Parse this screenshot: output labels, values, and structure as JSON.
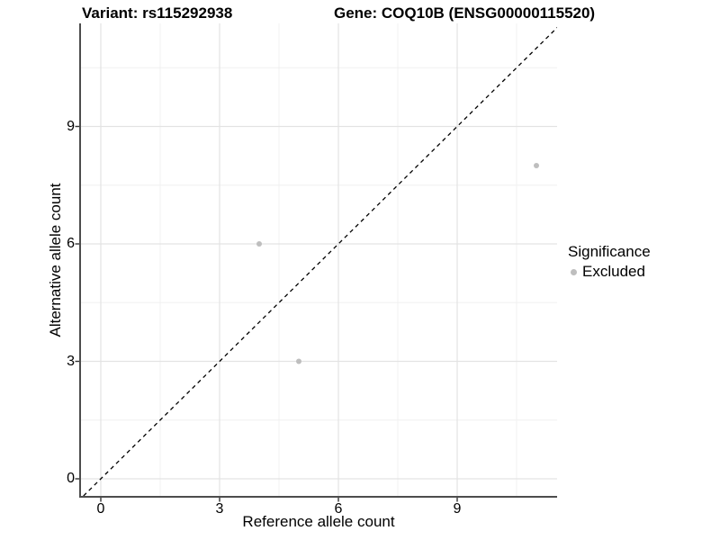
{
  "figure": {
    "title_left": "Variant: rs115292938",
    "title_right": "Gene: COQ10B (ENSG00000115520)"
  },
  "chart_data": {
    "type": "scatter",
    "title": "Variant: rs115292938   Gene: COQ10B (ENSG00000115520)",
    "xlabel": "Reference allele count",
    "ylabel": "Alternative allele count",
    "xlim": [
      -0.55,
      11.55
    ],
    "ylim": [
      -0.55,
      11.55
    ],
    "x_major_ticks": [
      0,
      3,
      6,
      9
    ],
    "y_major_ticks": [
      0,
      3,
      6,
      9
    ],
    "minor_breaks": [
      1.5,
      4.5,
      7.5,
      10.5
    ],
    "grid": {
      "major": true,
      "minor": true,
      "major_color": "#e3e3e3",
      "minor_color": "#f0f0f0"
    },
    "identity_line": {
      "equation": "y = x",
      "style": "dashed",
      "color": "#000000"
    },
    "series": [
      {
        "name": "Excluded",
        "color": "#bebebe",
        "points": [
          {
            "x": 4,
            "y": 6
          },
          {
            "x": 5,
            "y": 3
          },
          {
            "x": 11,
            "y": 8
          }
        ]
      }
    ],
    "legend": {
      "title": "Significance",
      "position": "right",
      "items": [
        {
          "label": "Excluded",
          "color": "#bebebe"
        }
      ]
    },
    "axis_color": "#4d4d4d",
    "tick_color": "#333333"
  }
}
